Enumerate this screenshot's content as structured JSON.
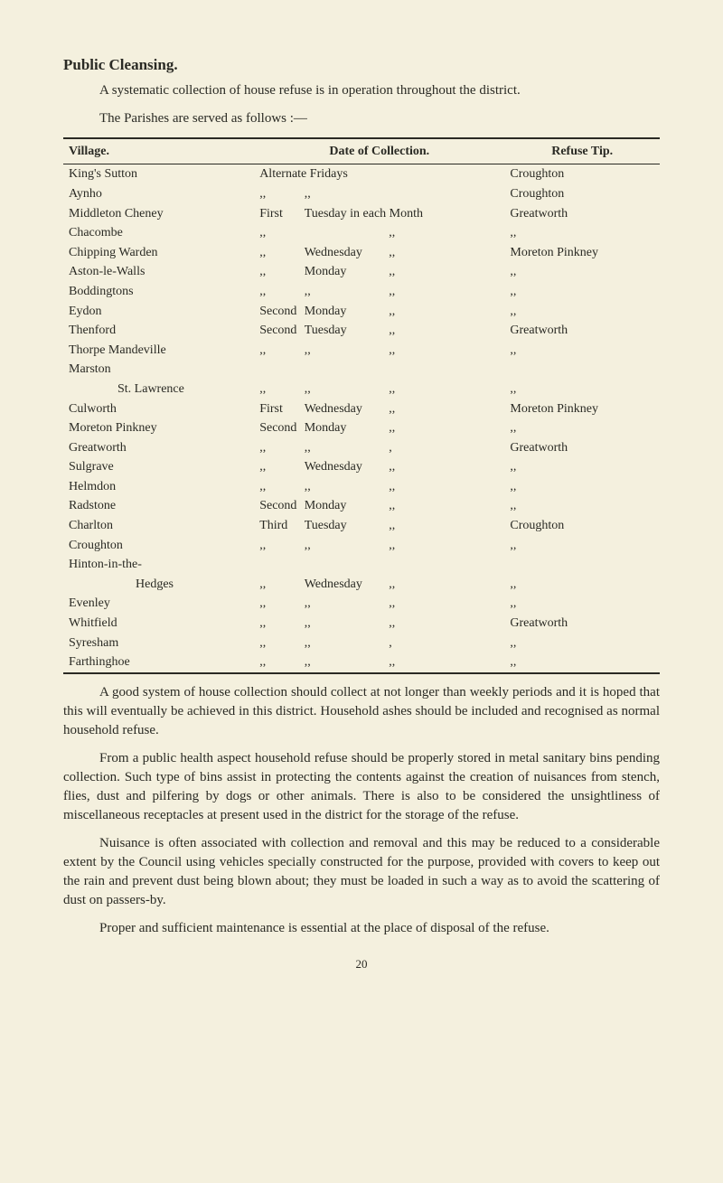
{
  "heading": "Public Cleansing.",
  "intro": "A systematic collection of house refuse is in operation throughout the district.",
  "tableIntro": "The Parishes are served as follows :—",
  "columns": {
    "village": "Village.",
    "date": "Date of Collection.",
    "tip": "Refuse Tip."
  },
  "rows": [
    {
      "village": "King's Sutton",
      "d1": "Alternate",
      "d2": "Fridays",
      "d3": "",
      "tip": "Croughton"
    },
    {
      "village": "Aynho",
      "d1": ",,",
      "d2": ",,",
      "d3": "",
      "tip": "Croughton"
    },
    {
      "village": "Middleton Cheney",
      "d1": "First",
      "d2": "Tuesday in each",
      "d3": "Month",
      "tip": "Greatworth"
    },
    {
      "village": "Chacombe",
      "d1": ",,",
      "d2": "",
      "d3": ",,",
      "tip": ",,"
    },
    {
      "village": "Chipping Warden",
      "d1": ",,",
      "d2": "Wednesday",
      "d3": ",,",
      "tip": "Moreton Pinkney"
    },
    {
      "village": "Aston-le-Walls",
      "d1": ",,",
      "d2": "Monday",
      "d3": ",,",
      "tip": ",,"
    },
    {
      "village": "Boddingtons",
      "d1": ",,",
      "d2": ",,",
      "d3": ",,",
      "tip": ",,"
    },
    {
      "village": "Eydon",
      "d1": "Second",
      "d2": "Monday",
      "d3": ",,",
      "tip": ",,"
    },
    {
      "village": "Thenford",
      "d1": "Second",
      "d2": "Tuesday",
      "d3": ",,",
      "tip": "Greatworth"
    },
    {
      "village": "Thorpe Mandeville",
      "d1": ",,",
      "d2": ",,",
      "d3": ",,",
      "tip": ",,"
    },
    {
      "village": "Marston",
      "d1": "",
      "d2": "",
      "d3": "",
      "tip": ""
    },
    {
      "village": "St. Lawrence",
      "d1": ",,",
      "d2": ",,",
      "d3": ",,",
      "tip": ",,",
      "indent": true
    },
    {
      "village": "Culworth",
      "d1": "First",
      "d2": "Wednesday",
      "d3": ",,",
      "tip": "Moreton Pinkney"
    },
    {
      "village": "Moreton Pinkney",
      "d1": "Second",
      "d2": "Monday",
      "d3": ",,",
      "tip": ",,"
    },
    {
      "village": "Greatworth",
      "d1": ",,",
      "d2": ",,",
      "d3": ",",
      "tip": "Greatworth"
    },
    {
      "village": "Sulgrave",
      "d1": ",,",
      "d2": "Wednesday",
      "d3": ",,",
      "tip": ",,"
    },
    {
      "village": "Helmdon",
      "d1": ",,",
      "d2": ",,",
      "d3": ",,",
      "tip": ",,"
    },
    {
      "village": "Radstone",
      "d1": "Second",
      "d2": "Monday",
      "d3": ",,",
      "tip": ",,"
    },
    {
      "village": "Charlton",
      "d1": "Third",
      "d2": "Tuesday",
      "d3": ",,",
      "tip": "Croughton"
    },
    {
      "village": "Croughton",
      "d1": ",,",
      "d2": ",,",
      "d3": ",,",
      "tip": ",,"
    },
    {
      "village": "Hinton-in-the-",
      "d1": "",
      "d2": "",
      "d3": "",
      "tip": ""
    },
    {
      "village": "Hedges",
      "d1": ",,",
      "d2": "Wednesday",
      "d3": ",,",
      "tip": ",,",
      "indent2": true
    },
    {
      "village": "Evenley",
      "d1": ",,",
      "d2": ",,",
      "d3": ",,",
      "tip": ",,"
    },
    {
      "village": "Whitfield",
      "d1": ",,",
      "d2": ",,",
      "d3": ",,",
      "tip": "Greatworth"
    },
    {
      "village": "Syresham",
      "d1": ",,",
      "d2": ",,",
      "d3": ",",
      "tip": ",,"
    },
    {
      "village": "Farthinghoe",
      "d1": ",,",
      "d2": ",,",
      "d3": ",,",
      "tip": ",,"
    }
  ],
  "para1": "A good system of house collection should collect at not longer than weekly periods and it is hoped that this will eventually be achieved in this district. Household ashes should be included and recognised as normal household refuse.",
  "para2": "From a public health aspect household refuse should be properly stored in metal sanitary bins pending collection. Such type of bins assist in protecting the contents against the creation of nuisances from stench, flies, dust and pilfering by dogs or other animals. There is also to be considered the unsightliness of miscellaneous receptacles at present used in the district for the storage of the refuse.",
  "para3": "Nuisance is often associated with collection and removal and this may be reduced to a considerable extent by the Council using vehicles specially constructed for the purpose, provided with covers to keep out the rain and prevent dust being blown about; they must be loaded in such a way as to avoid the scattering of dust on passers-by.",
  "para4": "Proper and sufficient maintenance is essential at the place of disposal of the refuse.",
  "pageNum": "20"
}
